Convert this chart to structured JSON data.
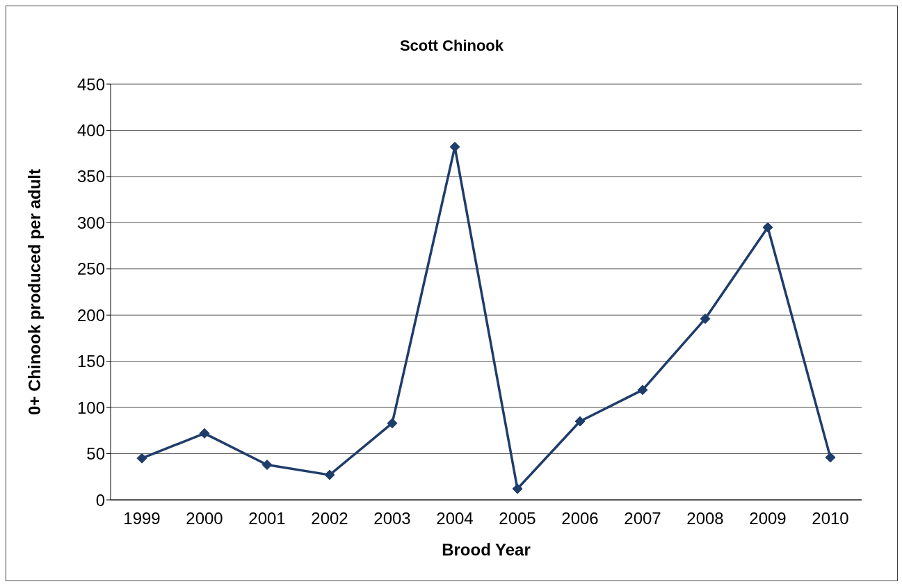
{
  "chart_data": {
    "type": "line",
    "title": "Scott Chinook",
    "xlabel": "Brood Year",
    "ylabel": "0+ Chinook produced per adult",
    "categories": [
      "1999",
      "2000",
      "2001",
      "2002",
      "2003",
      "2004",
      "2005",
      "2006",
      "2007",
      "2008",
      "2009",
      "2010"
    ],
    "series": [
      {
        "color": "#1f3d6b",
        "values": [
          45,
          72,
          38,
          27,
          83,
          382,
          12,
          85,
          119,
          196,
          295,
          46
        ]
      }
    ],
    "ylim": [
      0,
      450
    ],
    "yticks": [
      0,
      50,
      100,
      150,
      200,
      250,
      300,
      350,
      400,
      450
    ],
    "grid": "y",
    "legend": false,
    "marker": "diamond",
    "line_style": "solid"
  }
}
